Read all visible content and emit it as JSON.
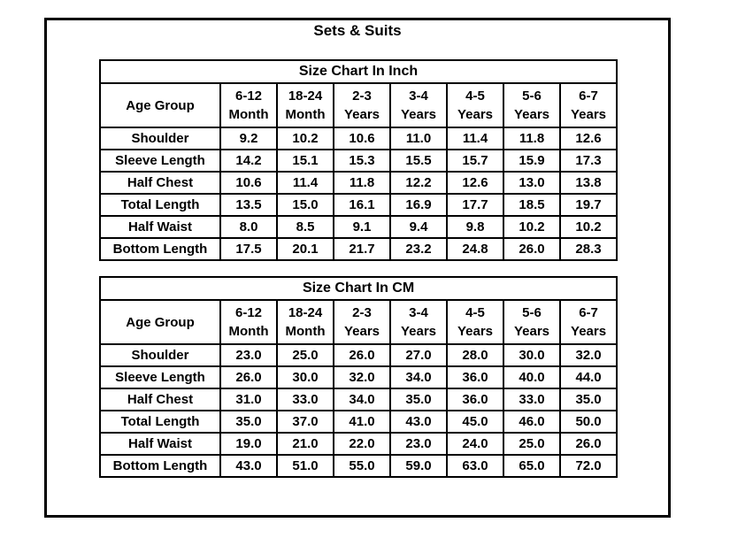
{
  "page_title": "Sets & Suits",
  "tables": [
    {
      "title": "Size Chart In Inch",
      "corner_header": "Age Group",
      "column_headers": [
        [
          "6-12",
          "Month"
        ],
        [
          "18-24",
          "Month"
        ],
        [
          "2-3",
          "Years"
        ],
        [
          "3-4",
          "Years"
        ],
        [
          "4-5",
          "Years"
        ],
        [
          "5-6",
          "Years"
        ],
        [
          "6-7",
          "Years"
        ]
      ],
      "rows": [
        {
          "label": "Shoulder",
          "values": [
            "9.2",
            "10.2",
            "10.6",
            "11.0",
            "11.4",
            "11.8",
            "12.6"
          ]
        },
        {
          "label": "Sleeve Length",
          "values": [
            "14.2",
            "15.1",
            "15.3",
            "15.5",
            "15.7",
            "15.9",
            "17.3"
          ]
        },
        {
          "label": "Half Chest",
          "values": [
            "10.6",
            "11.4",
            "11.8",
            "12.2",
            "12.6",
            "13.0",
            "13.8"
          ]
        },
        {
          "label": "Total Length",
          "values": [
            "13.5",
            "15.0",
            "16.1",
            "16.9",
            "17.7",
            "18.5",
            "19.7"
          ]
        },
        {
          "label": "Half Waist",
          "values": [
            "8.0",
            "8.5",
            "9.1",
            "9.4",
            "9.8",
            "10.2",
            "10.2"
          ]
        },
        {
          "label": "Bottom Length",
          "values": [
            "17.5",
            "20.1",
            "21.7",
            "23.2",
            "24.8",
            "26.0",
            "28.3"
          ]
        }
      ]
    },
    {
      "title": "Size Chart In CM",
      "corner_header": "Age Group",
      "column_headers": [
        [
          "6-12",
          "Month"
        ],
        [
          "18-24",
          "Month"
        ],
        [
          "2-3",
          "Years"
        ],
        [
          "3-4",
          "Years"
        ],
        [
          "4-5",
          "Years"
        ],
        [
          "5-6",
          "Years"
        ],
        [
          "6-7",
          "Years"
        ]
      ],
      "rows": [
        {
          "label": "Shoulder",
          "values": [
            "23.0",
            "25.0",
            "26.0",
            "27.0",
            "28.0",
            "30.0",
            "32.0"
          ]
        },
        {
          "label": "Sleeve Length",
          "values": [
            "26.0",
            "30.0",
            "32.0",
            "34.0",
            "36.0",
            "40.0",
            "44.0"
          ]
        },
        {
          "label": "Half Chest",
          "values": [
            "31.0",
            "33.0",
            "34.0",
            "35.0",
            "36.0",
            "33.0",
            "35.0"
          ]
        },
        {
          "label": "Total Length",
          "values": [
            "35.0",
            "37.0",
            "41.0",
            "43.0",
            "45.0",
            "46.0",
            "50.0"
          ]
        },
        {
          "label": "Half Waist",
          "values": [
            "19.0",
            "21.0",
            "22.0",
            "23.0",
            "24.0",
            "25.0",
            "26.0"
          ]
        },
        {
          "label": "Bottom Length",
          "values": [
            "43.0",
            "51.0",
            "55.0",
            "59.0",
            "63.0",
            "65.0",
            "72.0"
          ]
        }
      ]
    }
  ],
  "colors": {
    "text": "#000000",
    "border": "#000000",
    "background": "#ffffff"
  }
}
